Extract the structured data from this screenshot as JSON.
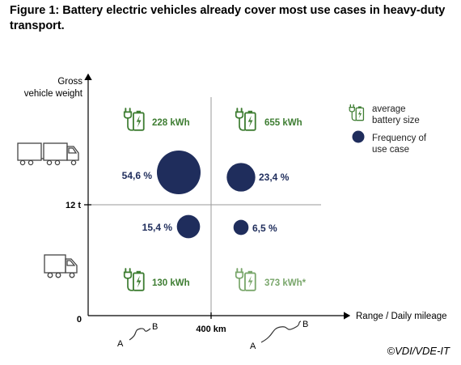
{
  "figure_title": "Figure 1: Battery electric vehicles already cover most use cases in heavy-duty transport.",
  "credit": "©VDI/VDE-IT",
  "colors": {
    "bubble": "#1f2d5c",
    "battery_green": "#3e7d32",
    "battery_light": "#7aa76c",
    "axis": "#000000",
    "grid": "#9a9a9a"
  },
  "chart_data": {
    "type": "bubble",
    "ylabel": [
      "Gross",
      "vehicle weight"
    ],
    "xlabel": "Range / Daily mileage",
    "origin_label": "0",
    "x_threshold_label": "400 km",
    "y_threshold_label": "12 t",
    "legend": {
      "battery": [
        "average",
        "battery size"
      ],
      "frequency": [
        "Frequency of",
        "use case"
      ]
    },
    "quadrants": [
      {
        "weight": ">12 t",
        "range": "<400 km",
        "battery_label": "228 kWh",
        "frequency": 54.6,
        "frequency_label": "54,6 %"
      },
      {
        "weight": ">12 t",
        "range": ">400 km",
        "battery_label": "655 kWh",
        "frequency": 23.4,
        "frequency_label": "23,4 %"
      },
      {
        "weight": "<12 t",
        "range": "<400 km",
        "battery_label": "130 kWh",
        "frequency": 15.4,
        "frequency_label": "15,4 %"
      },
      {
        "weight": "<12 t",
        "range": ">400 km",
        "battery_label": "373 kWh*",
        "frequency": 6.5,
        "frequency_label": "6,5 %",
        "faded": true
      }
    ],
    "route_marks": [
      {
        "from": "A",
        "to": "B"
      },
      {
        "from": "A",
        "to": "B"
      }
    ],
    "vehicle_icons": [
      "heavy-truck-with-trailer-icon",
      "light-truck-icon"
    ]
  }
}
